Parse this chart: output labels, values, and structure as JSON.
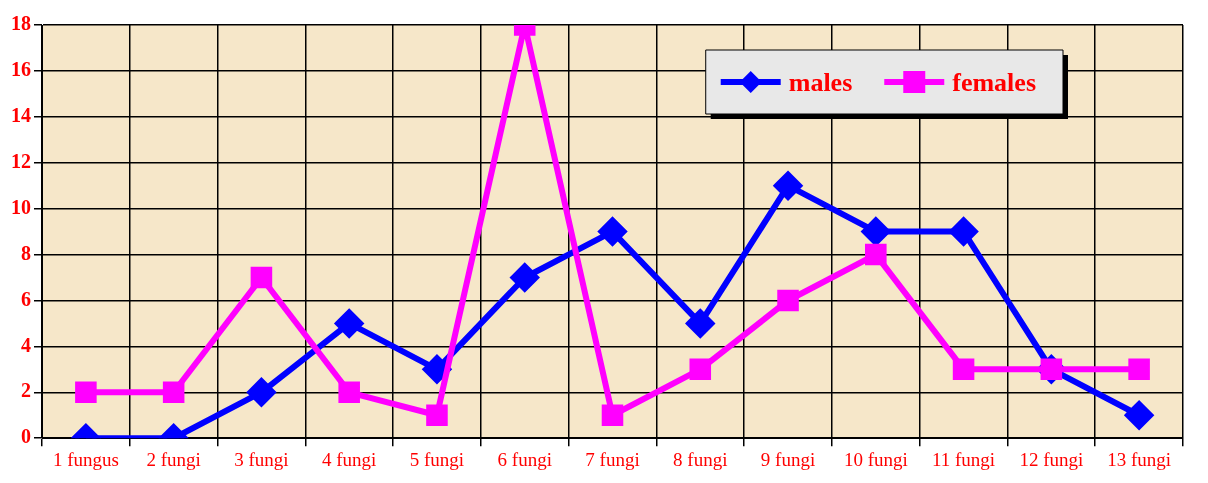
{
  "chart_data": {
    "type": "line",
    "categories": [
      "1 fungus",
      "2 fungi",
      "3 fungi",
      "4 fungi",
      "5 fungi",
      "6 fungi",
      "7 fungi",
      "8 fungi",
      "9 fungi",
      "10 fungi",
      "11 fungi",
      "12 fungi",
      "13 fungi"
    ],
    "series": [
      {
        "name": "males",
        "color": "#0000ff",
        "marker": "diamond",
        "values": [
          0,
          0,
          2,
          5,
          3,
          7,
          9,
          5,
          11,
          9,
          9,
          3,
          1
        ]
      },
      {
        "name": "females",
        "color": "#ff00ff",
        "marker": "square",
        "values": [
          2,
          2,
          7,
          2,
          1,
          18,
          1,
          3,
          6,
          8,
          3,
          3,
          3
        ]
      }
    ],
    "ylim": [
      0,
      18
    ],
    "yticks": [
      0,
      2,
      4,
      6,
      8,
      10,
      12,
      14,
      16,
      18
    ],
    "grid": true,
    "legend": "top right",
    "line_style": "solid"
  }
}
